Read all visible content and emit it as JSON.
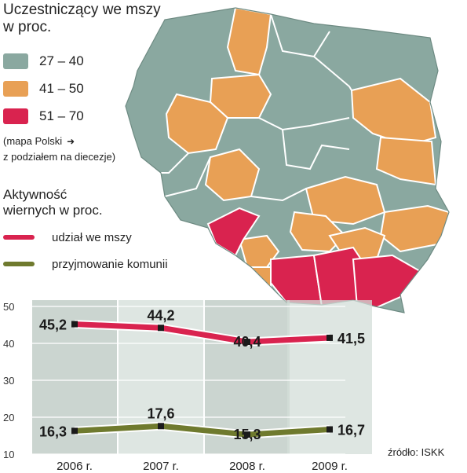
{
  "map_legend": {
    "title_line1": "Uczestniczący we mszy",
    "title_line2": "w proc.",
    "classes": [
      {
        "label": "27  – 40",
        "color": "#8aa8a0"
      },
      {
        "label": "41 – 50",
        "color": "#e8a055"
      },
      {
        "label": "51 – 70",
        "color": "#d9234f"
      }
    ],
    "note_line1": "(mapa Polski",
    "note_line2": "z podziałem na diecezje)"
  },
  "activity": {
    "title_line1": "Aktywność",
    "title_line2": "wiernych w proc."
  },
  "source": "źródło: ISKK",
  "chart_data": {
    "type": "line",
    "categories": [
      "2006 r.",
      "2007 r.",
      "2008 r.",
      "2009 r."
    ],
    "series": [
      {
        "name": "udział we mszy",
        "values": [
          45.2,
          44.2,
          40.4,
          41.5
        ],
        "labels": [
          "45,2",
          "44,2",
          "40,4",
          "41,5"
        ],
        "color": "#d9234f"
      },
      {
        "name": "przyjmowanie komunii",
        "values": [
          16.3,
          17.6,
          15.3,
          16.7
        ],
        "labels": [
          "16,3",
          "17,6",
          "15,3",
          "16,7"
        ],
        "color": "#6f7a2e"
      }
    ],
    "ylim": [
      10,
      50
    ],
    "yticks": [
      10,
      20,
      30,
      40,
      50
    ],
    "grid": true
  }
}
